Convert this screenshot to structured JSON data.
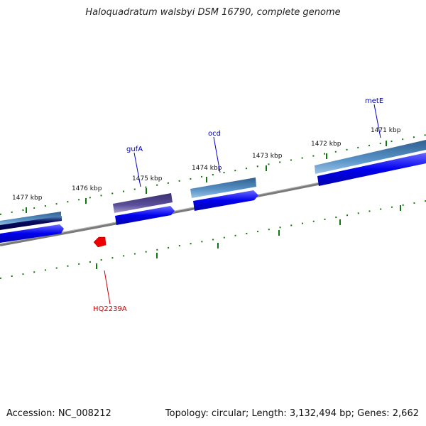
{
  "title": "Haloquadratum walsbyi DSM 16790, complete genome",
  "footer": {
    "accession": "Accession: NC_008212",
    "topology": "Topology: circular; Length: 3,132,494 bp; Genes: 2,662"
  },
  "ruler": {
    "unit": "kbp",
    "labels": [
      "1477 kbp",
      "1476 kbp",
      "1475 kbp",
      "1474 kbp",
      "1473 kbp",
      "1472 kbp",
      "1471 kbp"
    ]
  },
  "genes": [
    {
      "label": "metE",
      "label_color": "#0000aa",
      "bar_color": "#3f6f9f"
    },
    {
      "label": "ocd",
      "label_color": "#0000aa",
      "bar_color": "#4f86b8"
    },
    {
      "label": "gufA",
      "label_color": "#0000aa",
      "bar_color": "#4a3f8a"
    },
    {
      "label": "HQ2239A",
      "label_color": "#cc0000",
      "bar_color": "#ee0000"
    }
  ],
  "colors": {
    "backbone": "#808080",
    "cds": "#0000ee",
    "tick": "#117711"
  }
}
